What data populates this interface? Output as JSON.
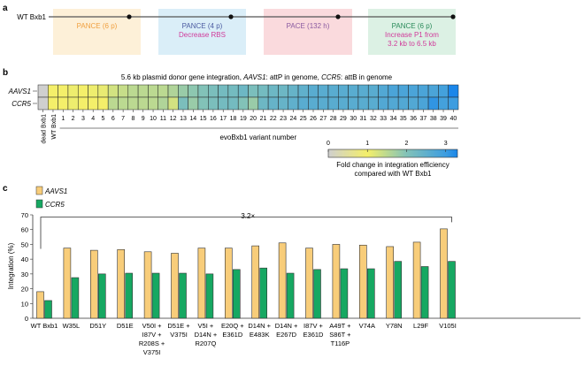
{
  "panel_a": {
    "label": "a",
    "start_label": "WT Bxb1",
    "stages": [
      {
        "title": "PANCE (6 p)",
        "detail": [],
        "fill": "#fdf0d8",
        "color": "#f0a040"
      },
      {
        "title": "PANCE (4 p)",
        "detail": [
          "Decrease RBS"
        ],
        "fill": "#daeef8",
        "color": "#4a5aa0"
      },
      {
        "title": "PACE (132 h)",
        "detail": [],
        "fill": "#fadadd",
        "color": "#8a5aa0"
      },
      {
        "title": "PANCE (6 p)",
        "detail": [
          "Increase P1 from",
          "3.2 kb to 6.5 kb"
        ],
        "fill": "#dcf1e4",
        "color": "#2a8a5a"
      }
    ],
    "detail_color": "#d03a9a"
  },
  "chart_data": [
    {
      "type": "heatmap",
      "panel_label": "b",
      "title_parts": [
        "5.6 kb plasmid donor gene integration, ",
        "AAVS1",
        ": attP in genome, ",
        "CCR5",
        ": attB in genome"
      ],
      "rows": [
        "AAVS1",
        "CCR5"
      ],
      "columns": [
        "dead Bxb1",
        "WT Bxb1",
        "1",
        "2",
        "3",
        "4",
        "5",
        "6",
        "7",
        "8",
        "9",
        "10",
        "11",
        "12",
        "13",
        "14",
        "15",
        "16",
        "17",
        "18",
        "19",
        "20",
        "21",
        "22",
        "23",
        "24",
        "25",
        "26",
        "27",
        "28",
        "29",
        "30",
        "31",
        "32",
        "33",
        "34",
        "35",
        "36",
        "37",
        "38",
        "39",
        "40"
      ],
      "values": [
        [
          0,
          1,
          1.0,
          1.05,
          1.0,
          1.05,
          1.1,
          1.3,
          1.4,
          1.5,
          1.5,
          1.5,
          1.5,
          1.6,
          1.8,
          1.9,
          2.0,
          2.1,
          2.2,
          2.2,
          2.3,
          2.1,
          2.2,
          2.3,
          2.3,
          2.4,
          2.5,
          2.6,
          2.6,
          2.6,
          2.6,
          2.6,
          2.6,
          2.6,
          2.7,
          2.8,
          2.8,
          2.8,
          2.8,
          2.8,
          2.9,
          3.3
        ],
        [
          0,
          1,
          1.0,
          1.05,
          1.0,
          1.0,
          1.0,
          1.5,
          1.5,
          1.5,
          1.5,
          1.5,
          1.6,
          1.3,
          2.1,
          1.8,
          2.0,
          2.1,
          2.2,
          2.2,
          2.0,
          1.8,
          2.3,
          2.4,
          2.4,
          2.5,
          2.6,
          2.6,
          2.6,
          2.6,
          2.6,
          2.6,
          2.6,
          2.6,
          2.7,
          2.7,
          2.7,
          2.7,
          2.8,
          3.1,
          2.9,
          3.0
        ]
      ],
      "xlabel": "evoBxb1 variant number",
      "colorbar": {
        "ticks": [
          "0",
          "1",
          "2",
          "3"
        ],
        "range": [
          0,
          3.3
        ],
        "label": [
          "Fold change in integration efficiency",
          "compared with WT Bxb1"
        ],
        "colors": [
          "#cfcfcf",
          "#f4ef6a",
          "#82c2b8",
          "#3d9de0",
          "#1a86ea"
        ]
      }
    },
    {
      "type": "bar",
      "panel_label": "c",
      "ylabel": "Integration (%)",
      "ylim": [
        0,
        70
      ],
      "yticks": [
        0,
        10,
        20,
        30,
        40,
        50,
        60,
        70
      ],
      "categories": [
        [
          "WT Bxb1"
        ],
        [
          "W35L"
        ],
        [
          "D51Y"
        ],
        [
          "D51E"
        ],
        [
          "V50I +",
          "I87V +",
          "R208S +",
          "V375I"
        ],
        [
          "D51E +",
          "V375I"
        ],
        [
          "V5I +",
          "D14N +",
          "R207Q"
        ],
        [
          "E20Q +",
          "E361D"
        ],
        [
          "D14N +",
          "E483K"
        ],
        [
          "D14N +",
          "E267D"
        ],
        [
          "I87V +",
          "E361D"
        ],
        [
          "A49T +",
          "S86T +",
          "T116P"
        ],
        [
          "V74A"
        ],
        [
          "Y78N"
        ],
        [
          "L29F"
        ],
        [
          "V105I"
        ]
      ],
      "series": [
        {
          "name": "AAVS1",
          "color": "#f8cd7a",
          "values": [
            18,
            47.5,
            46,
            46.5,
            45,
            44,
            47.5,
            47.5,
            49,
            51,
            47.5,
            50,
            49.5,
            48.5,
            51.5,
            60.5
          ]
        },
        {
          "name": "CCR5",
          "color": "#16a862",
          "values": [
            12,
            27.5,
            30,
            30.5,
            30.5,
            30.5,
            30,
            33,
            34,
            30.5,
            33,
            33.5,
            33.5,
            38.5,
            35,
            38.5
          ]
        }
      ],
      "legend_position": "top-left",
      "annotation": "3.2×"
    }
  ]
}
